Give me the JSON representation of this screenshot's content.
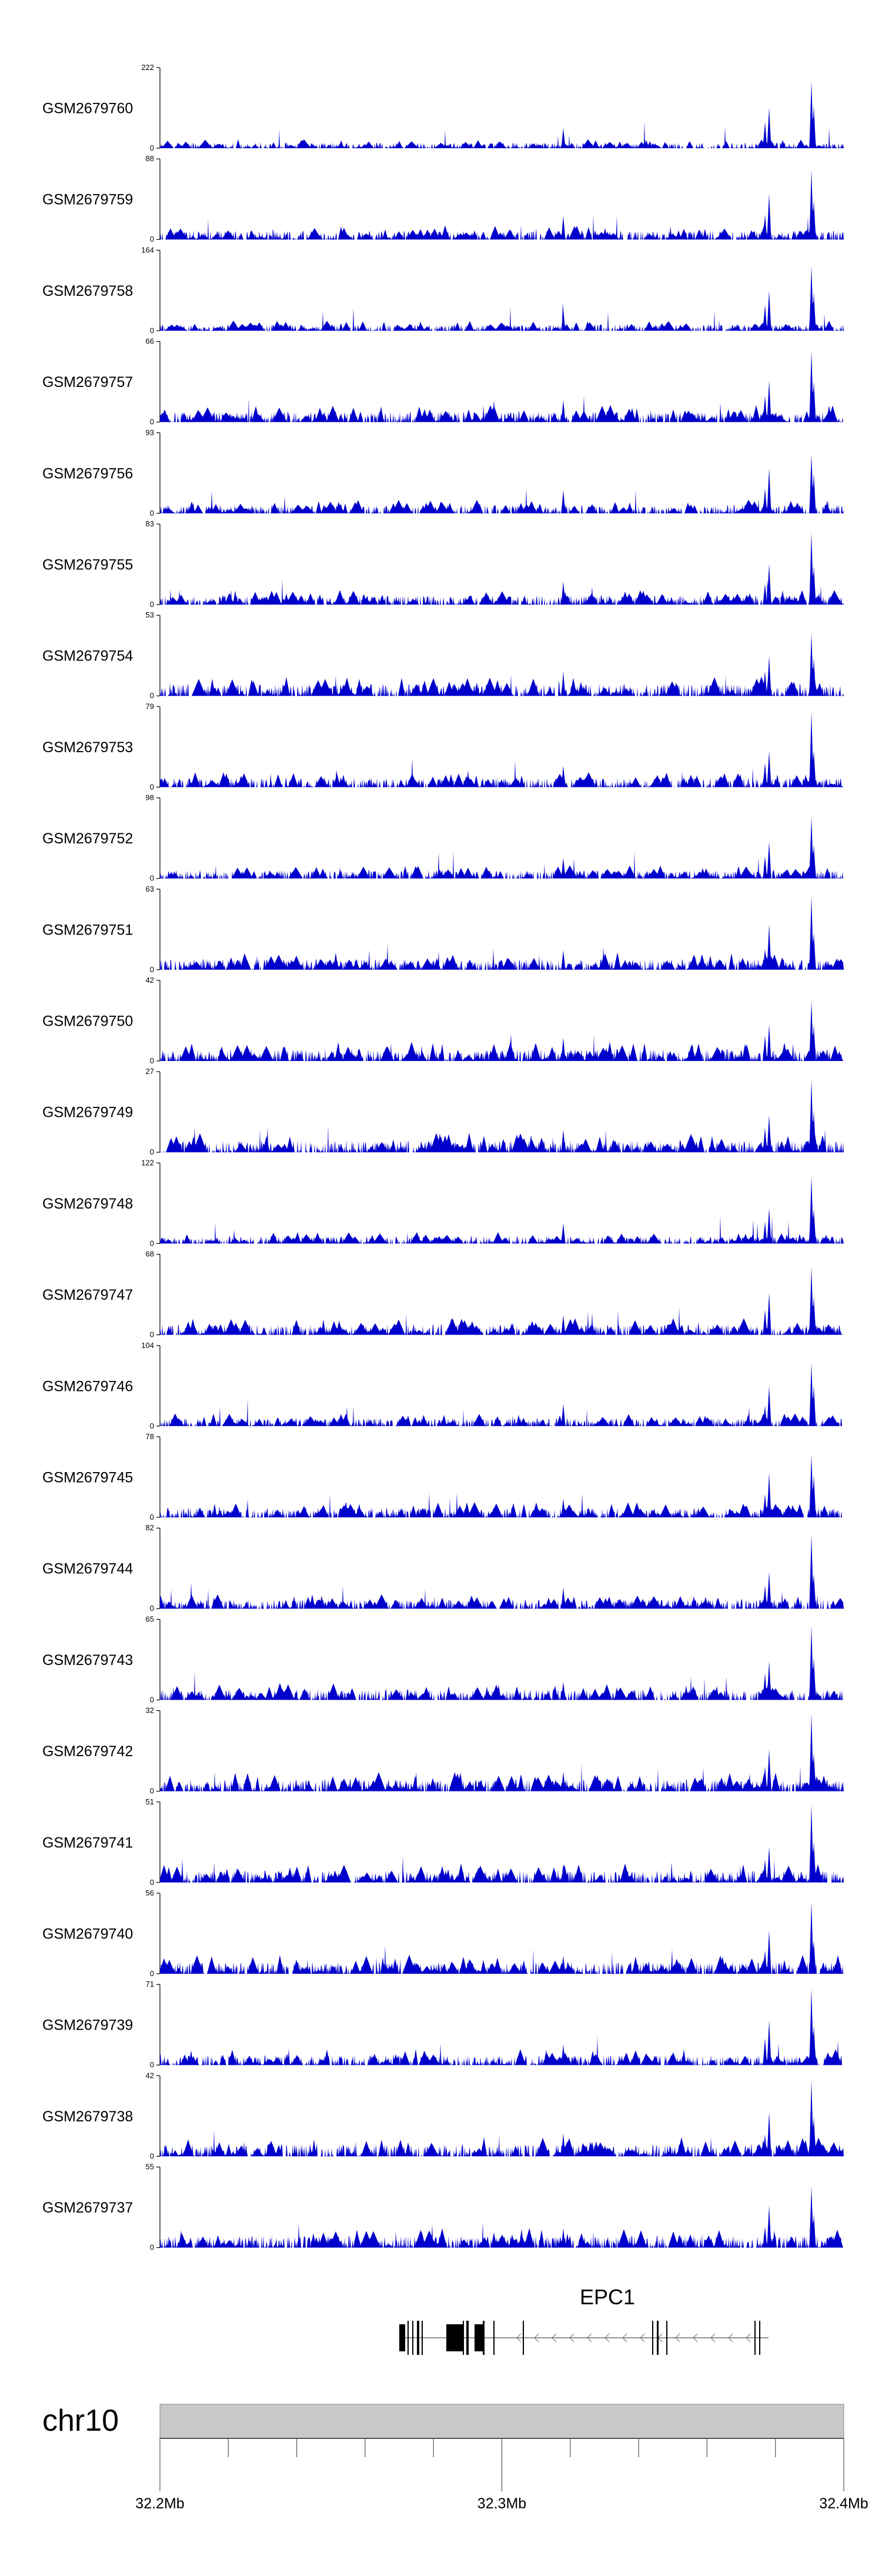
{
  "chart_data": {
    "type": "area",
    "title": "",
    "xlabel": "",
    "x_range": [
      32200000,
      32400000
    ],
    "x_ticks": [
      {
        "value": 32200000,
        "label": "32.2Mb"
      },
      {
        "value": 32300000,
        "label": "32.3Mb"
      },
      {
        "value": 32400000,
        "label": "32.4Mb"
      }
    ],
    "chromosome": "chr10",
    "fill_color": "#0000cc",
    "tracks": [
      {
        "name": "GSM2679760",
        "ymax": 222,
        "ymin": 0
      },
      {
        "name": "GSM2679759",
        "ymax": 88,
        "ymin": 0
      },
      {
        "name": "GSM2679758",
        "ymax": 164,
        "ymin": 0
      },
      {
        "name": "GSM2679757",
        "ymax": 66,
        "ymin": 0
      },
      {
        "name": "GSM2679756",
        "ymax": 93,
        "ymin": 0
      },
      {
        "name": "GSM2679755",
        "ymax": 83,
        "ymin": 0
      },
      {
        "name": "GSM2679754",
        "ymax": 53,
        "ymin": 0
      },
      {
        "name": "GSM2679753",
        "ymax": 79,
        "ymin": 0
      },
      {
        "name": "GSM2679752",
        "ymax": 98,
        "ymin": 0
      },
      {
        "name": "GSM2679751",
        "ymax": 63,
        "ymin": 0
      },
      {
        "name": "GSM2679750",
        "ymax": 42,
        "ymin": 0
      },
      {
        "name": "GSM2679749",
        "ymax": 27,
        "ymin": 0
      },
      {
        "name": "GSM2679748",
        "ymax": 122,
        "ymin": 0
      },
      {
        "name": "GSM2679747",
        "ymax": 68,
        "ymin": 0
      },
      {
        "name": "GSM2679746",
        "ymax": 104,
        "ymin": 0
      },
      {
        "name": "GSM2679745",
        "ymax": 78,
        "ymin": 0
      },
      {
        "name": "GSM2679744",
        "ymax": 82,
        "ymin": 0
      },
      {
        "name": "GSM2679743",
        "ymax": 65,
        "ymin": 0
      },
      {
        "name": "GSM2679742",
        "ymax": 32,
        "ymin": 0
      },
      {
        "name": "GSM2679741",
        "ymax": 51,
        "ymin": 0
      },
      {
        "name": "GSM2679740",
        "ymax": 56,
        "ymin": 0
      },
      {
        "name": "GSM2679739",
        "ymax": 71,
        "ymin": 0
      },
      {
        "name": "GSM2679738",
        "ymax": 42,
        "ymin": 0
      },
      {
        "name": "GSM2679737",
        "ymax": 55,
        "ymin": 0
      }
    ],
    "peaks": [
      {
        "pos": 32390500,
        "rel": 1.0
      },
      {
        "pos": 32391200,
        "rel": 0.55
      },
      {
        "pos": 32377000,
        "rel": 0.35
      },
      {
        "pos": 32378200,
        "rel": 0.6
      },
      {
        "pos": 32318000,
        "rel": 0.3
      },
      {
        "pos": 32253000,
        "rel": 0.12
      }
    ],
    "gene": {
      "name": "EPC1",
      "start": 32270000,
      "end": 32378000,
      "strand": "-"
    }
  }
}
